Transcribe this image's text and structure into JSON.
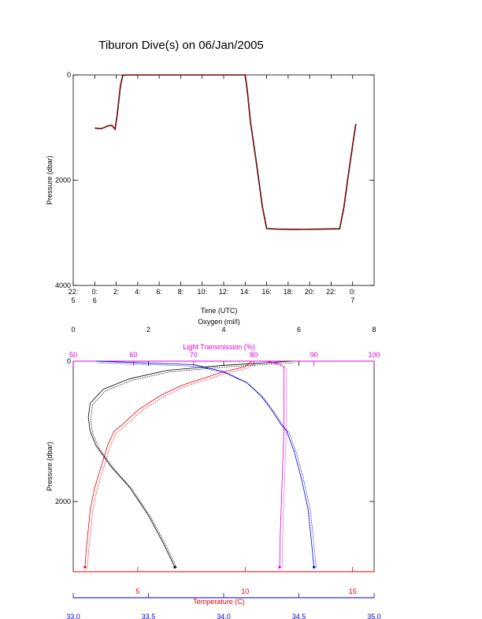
{
  "title": "Tiburon Dive(s) on 06/Jan/2005",
  "colors": {
    "axis": "#000000",
    "temperature": "#e8000b",
    "salinity": "#0000cc",
    "light": "#dd00dd",
    "oxygen": "#000000",
    "dive_line": "#000000",
    "dive_overlay": "#e8000b"
  },
  "chart_data": [
    {
      "type": "line",
      "title": "Tiburon Dive(s) on 06/Jan/2005",
      "xlabel": "Time (UTC)",
      "ylabel": "Pressure (dbar)",
      "x_unit": "hours since 22:00 UTC 05/Jan/2005",
      "xlim": [
        0,
        28
      ],
      "ylim": [
        4000,
        0
      ],
      "y_inverted": true,
      "x_tick_labels": [
        {
          "x": 0,
          "lines": [
            "22:",
            "5"
          ]
        },
        {
          "x": 2,
          "lines": [
            "0:",
            "6"
          ]
        },
        {
          "x": 4,
          "lines": [
            "2:"
          ]
        },
        {
          "x": 6,
          "lines": [
            "4:"
          ]
        },
        {
          "x": 8,
          "lines": [
            "6:"
          ]
        },
        {
          "x": 10,
          "lines": [
            "8:"
          ]
        },
        {
          "x": 12,
          "lines": [
            "10:"
          ]
        },
        {
          "x": 14,
          "lines": [
            "12:"
          ]
        },
        {
          "x": 16,
          "lines": [
            "14:"
          ]
        },
        {
          "x": 18,
          "lines": [
            "16:"
          ]
        },
        {
          "x": 20,
          "lines": [
            "18:"
          ]
        },
        {
          "x": 22,
          "lines": [
            "20:"
          ]
        },
        {
          "x": 24,
          "lines": [
            "22:"
          ]
        },
        {
          "x": 26,
          "lines": [
            "0:",
            "7"
          ]
        }
      ],
      "y_ticks": [
        0,
        2000,
        4000
      ],
      "series": [
        {
          "values": [
            [
              2.0,
              1010
            ],
            [
              2.6,
              1020
            ],
            [
              2.9,
              1000
            ],
            [
              3.2,
              970
            ],
            [
              3.6,
              960
            ],
            [
              3.9,
              1030
            ],
            [
              4.1,
              750
            ],
            [
              4.4,
              200
            ],
            [
              4.6,
              10
            ],
            [
              5,
              0
            ],
            [
              16,
              0
            ],
            [
              16.2,
              300
            ],
            [
              16.5,
              900
            ],
            [
              17.0,
              1600
            ],
            [
              17.6,
              2500
            ],
            [
              18.0,
              2920
            ],
            [
              19,
              2930
            ],
            [
              21,
              2935
            ],
            [
              23,
              2930
            ],
            [
              24.8,
              2925
            ],
            [
              25.2,
              2500
            ],
            [
              25.6,
              1900
            ],
            [
              26.1,
              1200
            ],
            [
              26.3,
              930
            ]
          ]
        }
      ]
    },
    {
      "type": "line",
      "ylabel": "Pressure (dbar)",
      "ylim": [
        3000,
        0
      ],
      "y_inverted": true,
      "y_ticks": [
        0,
        2000
      ],
      "axes": [
        {
          "label": "Oxygen (ml/l)",
          "position": "top-1",
          "range": [
            0,
            8
          ],
          "ticks": [
            0,
            2,
            4,
            6,
            8
          ],
          "color": "#000000"
        },
        {
          "label": "Light Transmission (%)",
          "position": "top-2",
          "range": [
            50,
            100
          ],
          "ticks": [
            50,
            60,
            70,
            80,
            90,
            100
          ],
          "color": "#dd00dd"
        },
        {
          "label": "Temperature (C)",
          "position": "bottom-1",
          "range": [
            2,
            16
          ],
          "ticks": [
            5,
            10,
            15
          ],
          "color": "#e8000b"
        },
        {
          "label": "Salinity (psu)",
          "position": "bottom-2",
          "range": [
            33.0,
            35.0
          ],
          "ticks": [
            "33.0",
            "33.5",
            "34.0",
            "34.5",
            "35.0"
          ],
          "color": "#0000cc"
        }
      ],
      "series": [
        {
          "axis": "Temperature (C)",
          "color": "#e8000b",
          "values": [
            [
              10.3,
              0
            ],
            [
              10.0,
              80
            ],
            [
              9.0,
              150
            ],
            [
              8.0,
              250
            ],
            [
              7.0,
              350
            ],
            [
              6.0,
              500
            ],
            [
              5.0,
              700
            ],
            [
              4.3,
              900
            ],
            [
              3.9,
              1000
            ],
            [
              3.6,
              1200
            ],
            [
              3.3,
              1500
            ],
            [
              3.0,
              1800
            ],
            [
              2.8,
              2100
            ],
            [
              2.7,
              2400
            ],
            [
              2.6,
              2700
            ],
            [
              2.55,
              2935
            ]
          ]
        },
        {
          "axis": "Salinity (psu)",
          "color": "#0000cc",
          "values": [
            [
              33.15,
              0
            ],
            [
              33.8,
              50
            ],
            [
              34.0,
              150
            ],
            [
              34.15,
              300
            ],
            [
              34.25,
              500
            ],
            [
              34.32,
              700
            ],
            [
              34.38,
              900
            ],
            [
              34.42,
              1000
            ],
            [
              34.47,
              1300
            ],
            [
              34.52,
              1700
            ],
            [
              34.56,
              2100
            ],
            [
              34.58,
              2500
            ],
            [
              34.6,
              2935
            ]
          ]
        },
        {
          "axis": "Oxygen (ml/l)",
          "color": "#000000",
          "values": [
            [
              5.8,
              0
            ],
            [
              5.2,
              20
            ],
            [
              4.0,
              60
            ],
            [
              2.5,
              130
            ],
            [
              1.5,
              250
            ],
            [
              0.8,
              400
            ],
            [
              0.45,
              600
            ],
            [
              0.4,
              800
            ],
            [
              0.45,
              1000
            ],
            [
              0.6,
              1200
            ],
            [
              1.0,
              1500
            ],
            [
              1.5,
              1800
            ],
            [
              2.0,
              2200
            ],
            [
              2.4,
              2600
            ],
            [
              2.7,
              2935
            ]
          ]
        },
        {
          "axis": "Light Transmission (%)",
          "color": "#dd00dd",
          "values": [
            [
              82,
              0
            ],
            [
              84,
              30
            ],
            [
              85,
              80
            ],
            [
              85,
              200
            ],
            [
              85,
              400
            ],
            [
              85,
              600
            ],
            [
              85,
              800
            ],
            [
              85,
              1000
            ],
            [
              84.8,
              1500
            ],
            [
              84.6,
              2000
            ],
            [
              84.4,
              2500
            ],
            [
              84.3,
              2935
            ]
          ]
        }
      ]
    }
  ]
}
